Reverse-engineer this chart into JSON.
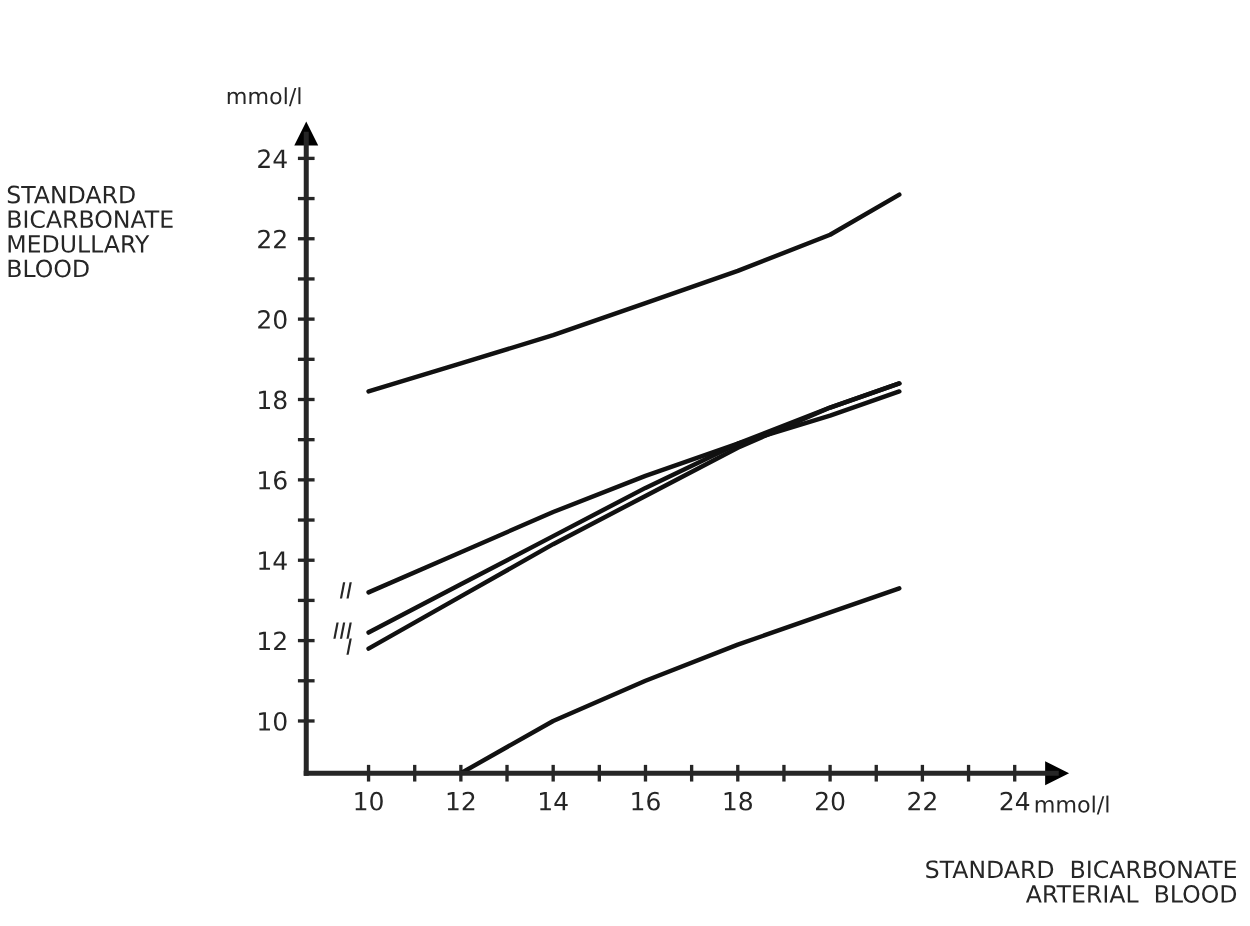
{
  "chart_data": {
    "type": "line",
    "xlabel": "STANDARD  BICARBONATE\nARTERIAL  BLOOD",
    "ylabel": "STANDARD\nBICARBONATE\nMEDULLARY\nBLOOD",
    "annotations": [
      "mmol/l",
      "mmol/l"
    ],
    "series": [
      {
        "color": "#111111",
        "x": [
          10,
          12,
          14,
          16,
          18,
          20,
          21.5
        ],
        "values": [
          18.2,
          18.9,
          19.6,
          20.4,
          21.2,
          22.1,
          23.1
        ]
      },
      {
        "name": "II",
        "color": "#111111",
        "x": [
          10,
          12,
          14,
          16,
          18,
          20,
          21.5
        ],
        "values": [
          13.2,
          14.2,
          15.2,
          16.1,
          16.9,
          17.6,
          18.2
        ]
      },
      {
        "name": "III",
        "color": "#111111",
        "x": [
          10,
          12,
          14,
          16,
          18,
          20,
          21.5
        ],
        "values": [
          12.2,
          13.4,
          14.6,
          15.8,
          16.9,
          17.8,
          18.4
        ]
      },
      {
        "name": "I",
        "color": "#111111",
        "x": [
          10,
          12,
          14,
          16,
          18,
          20,
          21.5
        ],
        "values": [
          11.8,
          13.1,
          14.4,
          15.6,
          16.8,
          17.8,
          18.4
        ]
      },
      {
        "color": "#111111",
        "x": [
          12,
          14,
          16,
          18,
          20,
          21.5
        ],
        "values": [
          8.7,
          10.0,
          11.0,
          11.9,
          12.7,
          13.3
        ]
      }
    ],
    "xlim": [
      8.65,
      24.9
    ],
    "ylim": [
      8.7,
      24.6
    ],
    "xticks": [
      10,
      {
        "value": 11,
        "label": null
      },
      12,
      {
        "value": 13,
        "label": null
      },
      14,
      {
        "value": 15,
        "label": null
      },
      16,
      {
        "value": 17,
        "label": null
      },
      18,
      {
        "value": 19,
        "label": null
      },
      20,
      {
        "value": 21,
        "label": null
      },
      22,
      {
        "value": 23,
        "label": null
      },
      24
    ],
    "yticks": [
      10,
      {
        "value": 11,
        "label": null
      },
      12,
      {
        "value": 13,
        "label": null
      },
      14,
      {
        "value": 15,
        "label": null
      },
      16,
      {
        "value": 17,
        "label": null
      },
      18,
      {
        "value": 19,
        "label": null
      },
      20,
      {
        "value": 21,
        "label": null
      },
      22,
      {
        "value": 23,
        "label": null
      },
      24
    ],
    "grid": false,
    "legend": false,
    "marker": "none",
    "line_style": "solid"
  }
}
